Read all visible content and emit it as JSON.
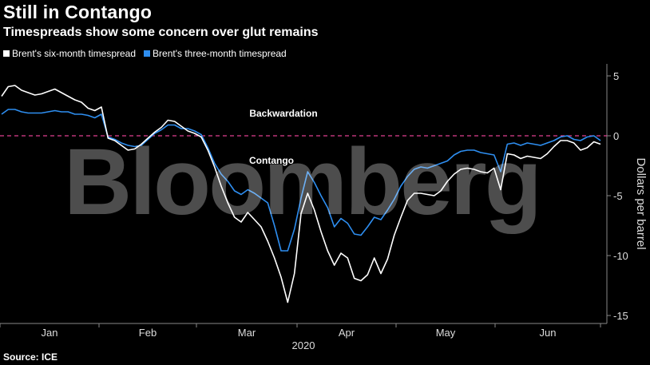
{
  "title": "Still in Contango",
  "subtitle": "Timespreads show some concern over glut remains",
  "source": "Source: ICE",
  "watermark": "Bloomberg",
  "colors": {
    "background": "#000000",
    "six_month": "#ffffff",
    "three_month": "#2e8ef0",
    "zero_line": "#e0418f",
    "grid": "#555555"
  },
  "chart_data": {
    "type": "line",
    "ylabel": "Dollars per barrel",
    "xlabel": "2020",
    "ylim": [
      -15,
      6
    ],
    "y_ticks": [
      5,
      0,
      -5,
      -10,
      -15
    ],
    "x_tick_labels": [
      "Jan",
      "Feb",
      "Mar",
      "Apr",
      "May",
      "Jun"
    ],
    "annotations": [
      "Backwardation",
      "Contango"
    ],
    "series": [
      {
        "name": "Brent's six-month timespread",
        "values": [
          3.3,
          4.1,
          4.2,
          3.8,
          3.6,
          3.4,
          3.5,
          3.7,
          3.9,
          3.6,
          3.3,
          3.0,
          2.8,
          2.3,
          2.1,
          2.4,
          -0.2,
          -0.4,
          -0.8,
          -1.2,
          -1.1,
          -0.7,
          -0.2,
          0.3,
          0.7,
          1.3,
          1.2,
          0.8,
          0.4,
          0.2,
          -0.1,
          -1.2,
          -2.6,
          -4.2,
          -5.6,
          -6.8,
          -7.2,
          -6.4,
          -7.0,
          -7.6,
          -8.8,
          -10.2,
          -11.8,
          -13.9,
          -11.5,
          -6.5,
          -4.8,
          -6.2,
          -8.0,
          -9.6,
          -10.8,
          -9.8,
          -10.2,
          -11.9,
          -12.1,
          -11.6,
          -10.2,
          -11.5,
          -10.3,
          -8.3,
          -6.8,
          -5.4,
          -4.8,
          -4.8,
          -4.9,
          -5.0,
          -4.6,
          -3.8,
          -3.2,
          -2.8,
          -2.7,
          -2.8,
          -3.0,
          -3.1,
          -2.7,
          -4.5,
          -1.5,
          -1.6,
          -1.9,
          -1.7,
          -1.8,
          -1.9,
          -1.5,
          -0.9,
          -0.4,
          -0.4,
          -0.6,
          -1.2,
          -1.0,
          -0.5,
          -0.7
        ]
      },
      {
        "name": "Brent's three-month timespread",
        "values": [
          1.8,
          2.2,
          2.2,
          2.0,
          1.9,
          1.9,
          1.9,
          2.0,
          2.1,
          2.0,
          2.0,
          1.8,
          1.8,
          1.7,
          1.5,
          1.8,
          -0.1,
          -0.3,
          -0.6,
          -0.8,
          -0.9,
          -0.8,
          -0.3,
          0.2,
          0.5,
          0.9,
          0.9,
          0.6,
          0.6,
          0.4,
          0.1,
          -1.0,
          -2.3,
          -3.2,
          -3.8,
          -4.6,
          -4.9,
          -4.5,
          -4.8,
          -5.2,
          -5.6,
          -7.5,
          -9.6,
          -9.6,
          -7.8,
          -5.2,
          -3.0,
          -3.9,
          -5.0,
          -6.0,
          -7.6,
          -6.9,
          -7.3,
          -8.2,
          -8.3,
          -7.6,
          -6.8,
          -7.0,
          -6.2,
          -5.3,
          -4.2,
          -3.4,
          -2.8,
          -2.6,
          -2.7,
          -2.5,
          -2.3,
          -2.1,
          -1.6,
          -1.3,
          -1.2,
          -1.2,
          -1.4,
          -1.5,
          -1.6,
          -3.0,
          -0.7,
          -0.6,
          -0.8,
          -0.6,
          -0.7,
          -0.8,
          -0.6,
          -0.4,
          -0.1,
          0.0,
          -0.3,
          -0.4,
          -0.1,
          0.0,
          -0.4
        ]
      }
    ]
  }
}
